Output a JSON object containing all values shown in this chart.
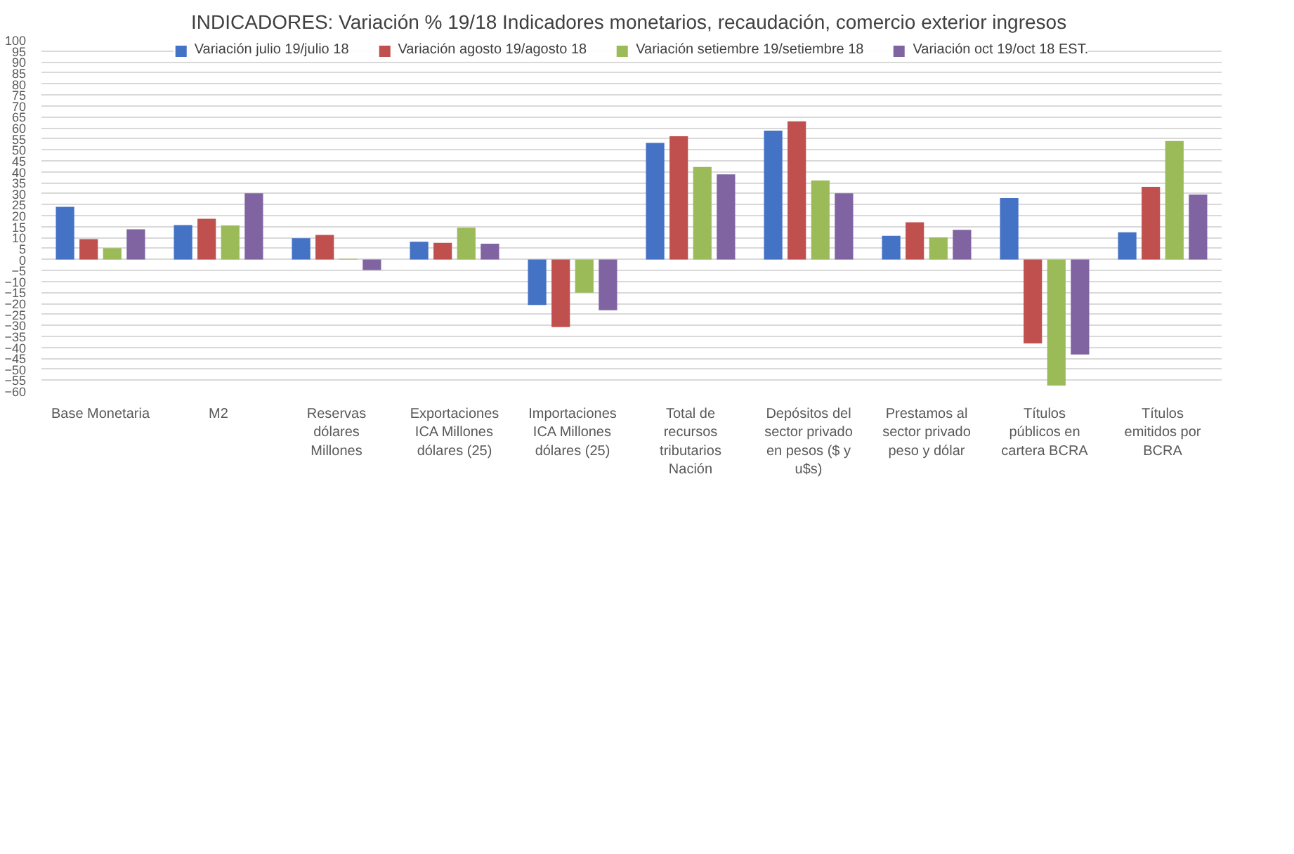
{
  "chart_data": {
    "type": "bar",
    "title": "INDICADORES: Variación  % 19/18 Indicadores monetarios, recaudación, comercio exterior ingresos",
    "categories": [
      "Base Monetaria",
      "M2",
      "Reservas dólares Millones",
      "Exportaciones ICA Millones dólares (25)",
      "Importaciones ICA Millones dólares (25)",
      "Total de recursos tributarios Nación",
      "Depósitos del sector privado en pesos ($ y u$s)",
      "Prestamos al sector privado peso y dólar",
      "Títulos públicos en cartera BCRA",
      "Títulos emitidos por BCRA"
    ],
    "series": [
      {
        "name": "Variación julio 19/julio 18",
        "color": "#4472c4",
        "values": [
          24,
          15.7,
          9.7,
          8.1,
          -20.7,
          53.1,
          58.7,
          10.8,
          28,
          12.4
        ]
      },
      {
        "name": "Variación agosto 19/agosto 18",
        "color": "#c0504d",
        "values": [
          9.3,
          18.6,
          11.2,
          7.6,
          -30.8,
          56.2,
          63,
          17,
          -38.2,
          33.1
        ]
      },
      {
        "name": "Variación setiembre 19/setiembre 18",
        "color": "#9bbb59",
        "values": [
          5.2,
          15.5,
          0.3,
          14.5,
          -15.1,
          42.2,
          36,
          10.1,
          -57.4,
          54
        ]
      },
      {
        "name": "Variación oct 19/oct 18 EST.",
        "color": "#8064a2",
        "values": [
          13.8,
          30.2,
          -4.8,
          7.2,
          -23.1,
          38.8,
          30.2,
          13.5,
          -43.3,
          29.6
        ]
      }
    ],
    "ylim": [
      -60,
      100
    ],
    "yticks": [
      -60,
      -55,
      -50,
      -45,
      -40,
      -35,
      -30,
      -25,
      -20,
      -15,
      -10,
      -5,
      0,
      5,
      10,
      15,
      20,
      25,
      30,
      35,
      40,
      45,
      50,
      55,
      60,
      65,
      70,
      75,
      80,
      85,
      90,
      95,
      100
    ],
    "grid": "y",
    "legend": "top"
  }
}
